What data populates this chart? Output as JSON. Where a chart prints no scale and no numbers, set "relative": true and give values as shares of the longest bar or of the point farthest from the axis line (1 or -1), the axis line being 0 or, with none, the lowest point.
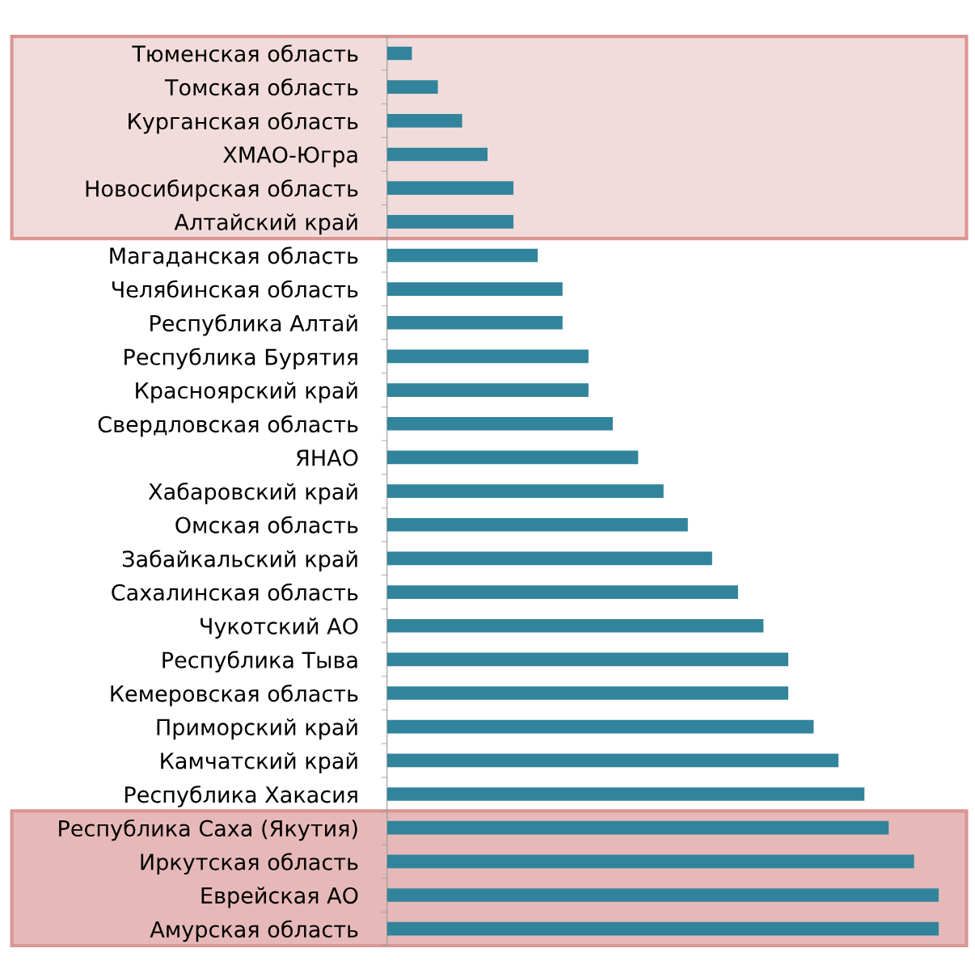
{
  "chart_data": {
    "type": "bar",
    "orientation": "horizontal",
    "relative": true,
    "color": "#31849b",
    "grid": false,
    "legend": false,
    "categories": [
      "Тюменская область",
      "Томская область",
      "Курганская область",
      "ХМАО-Югра",
      "Новосибирская область",
      "Алтайский край",
      "Магаданская область",
      "Челябинская область",
      "Республика Алтай",
      "Республика Бурятия",
      "Красноярский край",
      "Свердловская область",
      "ЯНАО",
      "Хабаровский край",
      "Омская область",
      "Забайкальский край",
      "Сахалинская область",
      "Чукотский АО",
      "Республика Тыва",
      "Кемеровская область",
      "Приморский край",
      "Камчатский край",
      "Республика Хакасия",
      "Республика Саха (Якутия)",
      "Иркутская область",
      "Еврейская АО",
      "Амурская область"
    ],
    "values": [
      0.045,
      0.092,
      0.136,
      0.182,
      0.229,
      0.229,
      0.273,
      0.318,
      0.318,
      0.365,
      0.365,
      0.409,
      0.455,
      0.501,
      0.545,
      0.589,
      0.636,
      0.682,
      0.727,
      0.727,
      0.773,
      0.818,
      0.865,
      0.909,
      0.955,
      1,
      1
    ],
    "bands": [
      {
        "axis": "y",
        "from": "Тюменская область",
        "to": "Алтайский край",
        "label": null,
        "color": "#f2dcdb"
      },
      {
        "axis": "y",
        "from": "Республика Саха (Якутия)",
        "to": "Амурская область",
        "label": null,
        "color": "#e6b9b8"
      }
    ]
  }
}
